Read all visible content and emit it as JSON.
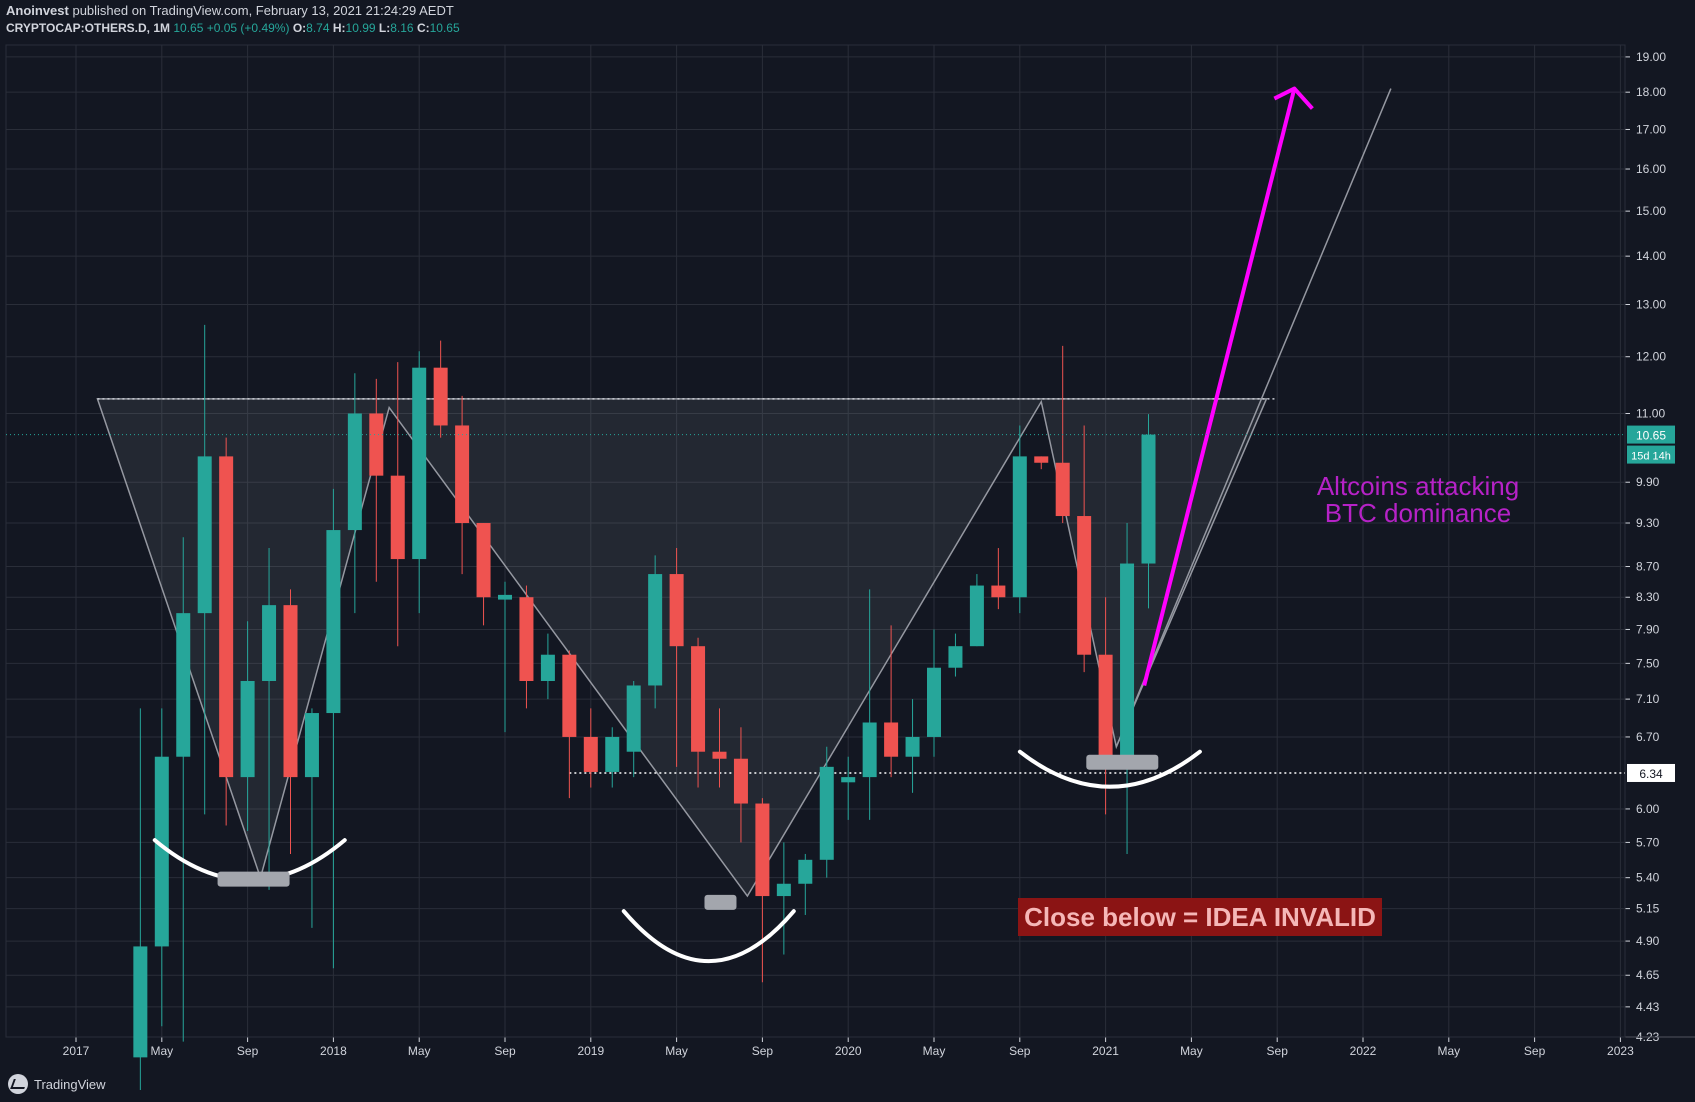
{
  "header": {
    "author": "Anoinvest",
    "published": "published on TradingView.com, February 13, 2021 21:24:29 AEDT",
    "symbol": "CRYPTOCAP:OTHERS.D, 1M",
    "last": "10.65",
    "change": "+0.05 (+0.49%)",
    "o_label": "O:",
    "o_value": "8.74",
    "h_label": "H:",
    "h_value": "10.99",
    "l_label": "L:",
    "l_value": "8.16",
    "c_label": "C:",
    "c_value": "10.65"
  },
  "footer": {
    "logo_text": "TradingView",
    "logo_icon": "tradingview-logo-icon"
  },
  "colors": {
    "background": "#131722",
    "grid": "#2a2e39",
    "up": "#26a69a",
    "down": "#ef5350",
    "axis_text": "#d1d4dc",
    "magenta": "#ff00ff",
    "purple_text": "#b622c7",
    "invalid_bg": "#8b1414",
    "pattern_line": "#9598a1"
  },
  "chart_data": {
    "type": "candlestick",
    "title": "",
    "xlabel": "",
    "ylabel": "",
    "y_scale": "log",
    "ylim": [
      4.23,
      19.35
    ],
    "grid": true,
    "x_tick_labels": [
      "2017",
      "May",
      "Sep",
      "2018",
      "May",
      "Sep",
      "2019",
      "May",
      "Sep",
      "2020",
      "May",
      "Sep",
      "2021",
      "May",
      "Sep",
      "2022",
      "May",
      "Sep",
      "2023"
    ],
    "y_tick_labels": [
      "19.00",
      "18.00",
      "17.00",
      "16.00",
      "15.00",
      "14.00",
      "13.00",
      "12.00",
      "11.00",
      "9.90",
      "9.30",
      "8.70",
      "8.30",
      "7.90",
      "7.50",
      "7.10",
      "6.70",
      "6.00",
      "5.70",
      "5.40",
      "5.15",
      "4.90",
      "4.65",
      "4.43",
      "4.23"
    ],
    "candles": [
      {
        "t": "2017-04",
        "o": 4.1,
        "h": 7.0,
        "l": 3.9,
        "c": 4.86
      },
      {
        "t": "2017-05",
        "o": 4.86,
        "h": 7.0,
        "l": 4.3,
        "c": 6.5
      },
      {
        "t": "2017-06",
        "o": 6.5,
        "h": 9.1,
        "l": 4.2,
        "c": 8.1
      },
      {
        "t": "2017-07",
        "o": 8.1,
        "h": 12.6,
        "l": 5.95,
        "c": 10.3
      },
      {
        "t": "2017-08",
        "o": 10.3,
        "h": 10.6,
        "l": 5.85,
        "c": 6.3
      },
      {
        "t": "2017-09",
        "o": 6.3,
        "h": 8.0,
        "l": 5.8,
        "c": 7.3
      },
      {
        "t": "2017-10",
        "o": 7.3,
        "h": 8.95,
        "l": 5.3,
        "c": 8.2
      },
      {
        "t": "2017-11",
        "o": 8.2,
        "h": 8.4,
        "l": 5.6,
        "c": 6.3
      },
      {
        "t": "2017-12",
        "o": 6.3,
        "h": 7.0,
        "l": 5.0,
        "c": 6.95
      },
      {
        "t": "2018-01",
        "o": 6.95,
        "h": 9.8,
        "l": 4.7,
        "c": 9.2
      },
      {
        "t": "2018-02",
        "o": 9.2,
        "h": 11.7,
        "l": 8.1,
        "c": 11.0
      },
      {
        "t": "2018-03",
        "o": 11.0,
        "h": 11.6,
        "l": 8.5,
        "c": 10.0
      },
      {
        "t": "2018-04",
        "o": 10.0,
        "h": 11.9,
        "l": 7.7,
        "c": 8.8
      },
      {
        "t": "2018-05",
        "o": 8.8,
        "h": 12.1,
        "l": 8.1,
        "c": 11.8
      },
      {
        "t": "2018-06",
        "o": 11.8,
        "h": 12.3,
        "l": 10.6,
        "c": 10.8
      },
      {
        "t": "2018-07",
        "o": 10.8,
        "h": 11.3,
        "l": 8.6,
        "c": 9.3
      },
      {
        "t": "2018-08",
        "o": 9.3,
        "h": 9.3,
        "l": 7.95,
        "c": 8.3
      },
      {
        "t": "2018-09",
        "o": 8.27,
        "h": 8.5,
        "l": 6.75,
        "c": 8.33
      },
      {
        "t": "2018-10",
        "o": 8.3,
        "h": 8.45,
        "l": 7.0,
        "c": 7.3
      },
      {
        "t": "2018-11",
        "o": 7.3,
        "h": 7.85,
        "l": 7.1,
        "c": 7.6
      },
      {
        "t": "2018-12",
        "o": 7.6,
        "h": 7.65,
        "l": 6.1,
        "c": 6.7
      },
      {
        "t": "2019-01",
        "o": 6.7,
        "h": 7.0,
        "l": 6.2,
        "c": 6.35
      },
      {
        "t": "2019-02",
        "o": 6.35,
        "h": 6.8,
        "l": 6.2,
        "c": 6.7
      },
      {
        "t": "2019-03",
        "o": 6.55,
        "h": 7.3,
        "l": 6.3,
        "c": 7.25
      },
      {
        "t": "2019-04",
        "o": 7.25,
        "h": 8.85,
        "l": 7.0,
        "c": 8.6
      },
      {
        "t": "2019-05",
        "o": 8.6,
        "h": 8.95,
        "l": 6.4,
        "c": 7.7
      },
      {
        "t": "2019-06",
        "o": 7.7,
        "h": 7.8,
        "l": 6.2,
        "c": 6.55
      },
      {
        "t": "2019-07",
        "o": 6.55,
        "h": 7.0,
        "l": 6.2,
        "c": 6.48
      },
      {
        "t": "2019-08",
        "o": 6.48,
        "h": 6.8,
        "l": 5.7,
        "c": 6.05
      },
      {
        "t": "2019-09",
        "o": 6.05,
        "h": 6.1,
        "l": 4.6,
        "c": 5.25
      },
      {
        "t": "2019-10",
        "o": 5.25,
        "h": 5.7,
        "l": 4.8,
        "c": 5.35
      },
      {
        "t": "2019-11",
        "o": 5.35,
        "h": 5.6,
        "l": 5.1,
        "c": 5.55
      },
      {
        "t": "2019-12",
        "o": 5.55,
        "h": 6.6,
        "l": 5.4,
        "c": 6.4
      },
      {
        "t": "2020-01",
        "o": 6.25,
        "h": 6.5,
        "l": 5.9,
        "c": 6.3
      },
      {
        "t": "2020-02",
        "o": 6.3,
        "h": 8.4,
        "l": 5.9,
        "c": 6.85
      },
      {
        "t": "2020-03",
        "o": 6.85,
        "h": 7.95,
        "l": 6.3,
        "c": 6.5
      },
      {
        "t": "2020-04",
        "o": 6.5,
        "h": 7.1,
        "l": 6.15,
        "c": 6.7
      },
      {
        "t": "2020-05",
        "o": 6.7,
        "h": 7.9,
        "l": 6.5,
        "c": 7.45
      },
      {
        "t": "2020-06",
        "o": 7.45,
        "h": 7.85,
        "l": 7.35,
        "c": 7.7
      },
      {
        "t": "2020-07",
        "o": 7.7,
        "h": 8.6,
        "l": 7.7,
        "c": 8.45
      },
      {
        "t": "2020-08",
        "o": 8.45,
        "h": 8.95,
        "l": 8.15,
        "c": 8.3
      },
      {
        "t": "2020-09",
        "o": 8.3,
        "h": 10.8,
        "l": 8.1,
        "c": 10.3
      },
      {
        "t": "2020-10",
        "o": 10.3,
        "h": 10.3,
        "l": 10.1,
        "c": 10.2
      },
      {
        "t": "2020-11",
        "o": 10.2,
        "h": 12.2,
        "l": 9.3,
        "c": 9.4
      },
      {
        "t": "2020-12",
        "o": 9.4,
        "h": 10.8,
        "l": 7.4,
        "c": 7.6
      },
      {
        "t": "2021-01",
        "o": 7.6,
        "h": 8.3,
        "l": 5.95,
        "c": 6.4
      },
      {
        "t": "2021-02",
        "o": 6.45,
        "h": 9.3,
        "l": 5.6,
        "c": 8.74
      },
      {
        "t": "2021-03",
        "o": 8.74,
        "h": 10.99,
        "l": 8.16,
        "c": 10.65
      }
    ],
    "price_labels": [
      "10.65",
      "15d 14h",
      "6.34"
    ],
    "annotations": [
      "Altcoins attacking",
      "BTC dominance",
      "Close below = IDEA INVALID"
    ]
  }
}
